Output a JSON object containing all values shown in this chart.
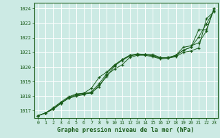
{
  "bg_color": "#cceae4",
  "grid_color": "#ffffff",
  "line_color": "#1a5c1a",
  "marker_color": "#1a5c1a",
  "title": "Graphe pression niveau de la mer (hPa)",
  "title_color": "#1a5c1a",
  "xlim": [
    -0.5,
    23.5
  ],
  "ylim": [
    1016.5,
    1024.4
  ],
  "yticks": [
    1017,
    1018,
    1019,
    1020,
    1021,
    1022,
    1023,
    1024
  ],
  "xticks": [
    0,
    1,
    2,
    3,
    4,
    5,
    6,
    7,
    8,
    9,
    10,
    11,
    12,
    13,
    14,
    15,
    16,
    17,
    18,
    19,
    20,
    21,
    22,
    23
  ],
  "series": [
    [
      1016.65,
      1016.85,
      1017.1,
      1017.5,
      1017.85,
      1018.05,
      1018.15,
      1018.2,
      1018.75,
      1019.35,
      1020.05,
      1020.5,
      1020.8,
      1020.85,
      1020.85,
      1020.85,
      1020.65,
      1020.6,
      1020.7,
      1021.0,
      1021.1,
      1021.3,
      1023.3,
      1023.8
    ],
    [
      1016.65,
      1016.85,
      1017.1,
      1017.5,
      1017.9,
      1018.1,
      1018.2,
      1018.55,
      1019.3,
      1019.65,
      1020.15,
      1020.5,
      1020.8,
      1020.9,
      1020.85,
      1020.8,
      1020.6,
      1020.65,
      1020.8,
      1021.15,
      1021.35,
      1022.55,
      1022.55,
      1023.95
    ],
    [
      1016.65,
      1016.85,
      1017.2,
      1017.6,
      1017.95,
      1018.15,
      1018.2,
      1018.25,
      1018.65,
      1019.45,
      1019.85,
      1020.15,
      1020.65,
      1020.8,
      1020.8,
      1020.7,
      1020.55,
      1020.6,
      1020.8,
      1021.35,
      1021.45,
      1021.65,
      1022.45,
      1024.0
    ],
    [
      1016.65,
      1016.85,
      1017.15,
      1017.55,
      1017.85,
      1018.0,
      1018.1,
      1018.3,
      1018.85,
      1019.55,
      1020.1,
      1020.45,
      1020.75,
      1020.85,
      1020.85,
      1020.75,
      1020.6,
      1020.65,
      1020.75,
      1021.15,
      1021.35,
      1022.05,
      1022.95,
      1023.85
    ]
  ]
}
